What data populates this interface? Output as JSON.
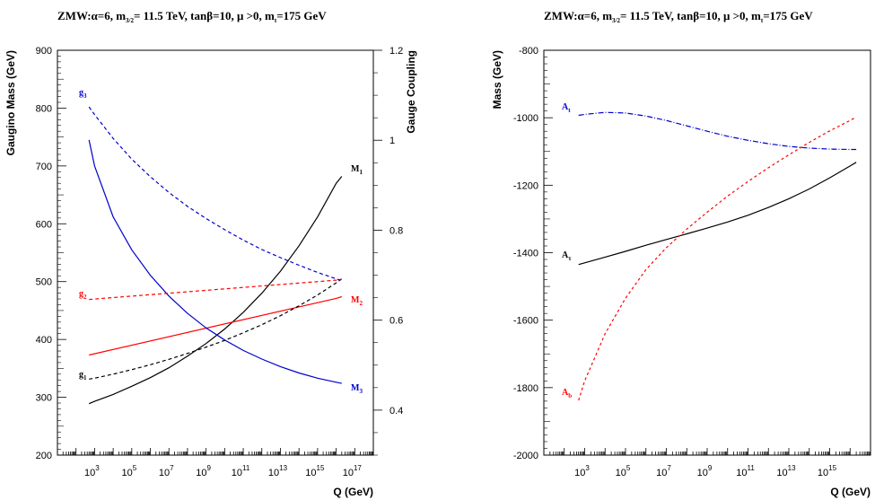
{
  "chart_data": [
    {
      "type": "line",
      "title_main": "ZMW:α=6, m",
      "title_sub": "3/2",
      "title_rest": "= 11.5 TeV, tanβ=10, μ >0, m",
      "title_sub2": "t",
      "title_end": "=175 GeV",
      "xlabel": "Q (GeV)",
      "ylabel": "Gaugino Mass (GeV)",
      "ylabel_right": "Gauge Coupling",
      "x_scale": "log",
      "xlim": [
        10,
        1e+18
      ],
      "ylim": [
        200,
        900
      ],
      "ylim_right": [
        0.3,
        1.2
      ],
      "xticks": [
        1000.0,
        100000.0,
        10000000.0,
        1000000000.0,
        100000000000.0,
        10000000000000.0,
        1000000000000000.0,
        1e+17
      ],
      "xtick_exponents": [
        "3",
        "5",
        "7",
        "9",
        "11",
        "13",
        "15",
        "17"
      ],
      "xtick_base": "10",
      "yticks": [
        "200",
        "300",
        "400",
        "500",
        "600",
        "700",
        "800",
        "900"
      ],
      "yticks_right": [
        "0.4",
        "0.6",
        "0.8",
        "1",
        "1.2"
      ],
      "series": [
        {
          "label": "M",
          "sub": "1",
          "color": "#000000",
          "dash": "none",
          "axis": "left",
          "x": [
            500,
            1000.0,
            10000.0,
            100000.0,
            1000000.0,
            10000000.0,
            100000000.0,
            1000000000.0,
            10000000000.0,
            100000000000.0,
            1000000000000.0,
            10000000000000.0,
            100000000000000.0,
            1000000000000000.0,
            1e+16,
            2e+16
          ],
          "y": [
            289,
            293,
            305,
            319,
            334,
            351,
            371,
            393,
            418,
            447,
            480,
            518,
            562,
            612,
            670,
            682
          ]
        },
        {
          "label": "M",
          "sub": "2",
          "color": "#ff0000",
          "dash": "none",
          "axis": "left",
          "x": [
            500,
            1e+16,
            2e+16
          ],
          "y": [
            373,
            471,
            474
          ]
        },
        {
          "label": "M",
          "sub": "3",
          "color": "#0000cc",
          "dash": "none",
          "axis": "left",
          "x": [
            500,
            1000.0,
            10000.0,
            100000.0,
            1000000.0,
            10000000.0,
            100000000.0,
            1000000000.0,
            10000000000.0,
            100000000000.0,
            1000000000000.0,
            10000000000000.0,
            100000000000000.0,
            1000000000000000.0,
            1e+16,
            2e+16
          ],
          "y": [
            745,
            700,
            612,
            555,
            511,
            475,
            445,
            420,
            399,
            381,
            366,
            353,
            342,
            333,
            326,
            324
          ]
        },
        {
          "label": "g",
          "sub": "1",
          "color": "#000000",
          "dash": "4,3",
          "axis": "right",
          "x": [
            500,
            1000.0,
            10000.0,
            100000.0,
            1000000.0,
            10000000.0,
            100000000.0,
            1000000000.0,
            10000000000.0,
            100000000000.0,
            1000000000000.0,
            10000000000000.0,
            100000000000000.0,
            1000000000000000.0,
            1e+16,
            2e+16
          ],
          "y": [
            0.469,
            0.471,
            0.48,
            0.49,
            0.501,
            0.513,
            0.526,
            0.54,
            0.555,
            0.572,
            0.59,
            0.61,
            0.632,
            0.656,
            0.683,
            0.692
          ]
        },
        {
          "label": "g",
          "sub": "2",
          "color": "#ff0000",
          "dash": "4,3",
          "axis": "right",
          "x": [
            500,
            1e+16,
            2e+16
          ],
          "y": [
            0.646,
            0.689,
            0.691
          ]
        },
        {
          "label": "g",
          "sub": "3",
          "color": "#0000cc",
          "dash": "4,3",
          "axis": "right",
          "x": [
            500,
            1000.0,
            10000.0,
            100000.0,
            1000000.0,
            10000000.0,
            100000000.0,
            1000000000.0,
            10000000000.0,
            100000000000.0,
            1000000000000.0,
            10000000000000.0,
            100000000000000.0,
            1000000000000000.0,
            1e+16,
            2e+16
          ],
          "y": [
            1.074,
            1.057,
            1.004,
            0.958,
            0.919,
            0.884,
            0.853,
            0.826,
            0.801,
            0.778,
            0.757,
            0.739,
            0.722,
            0.706,
            0.692,
            0.688
          ]
        }
      ]
    },
    {
      "type": "line",
      "title_main": "ZMW:α=6, m",
      "title_sub": "3/2",
      "title_rest": "= 11.5 TeV, tanβ=10, μ >0, m",
      "title_sub2": "t",
      "title_end": "=175 GeV",
      "xlabel": "Q (GeV)",
      "ylabel": "Mass (GeV)",
      "x_scale": "log",
      "xlim": [
        10,
        1e+17
      ],
      "ylim": [
        -2000,
        -800
      ],
      "xticks": [
        1000.0,
        100000.0,
        10000000.0,
        1000000000.0,
        100000000000.0,
        10000000000000.0,
        1000000000000000.0
      ],
      "xtick_exponents": [
        "3",
        "5",
        "7",
        "9",
        "11",
        "13",
        "15"
      ],
      "xtick_base": "10",
      "yticks": [
        "-2000",
        "-1800",
        "-1600",
        "-1400",
        "-1200",
        "-1000",
        "-800"
      ],
      "series": [
        {
          "label": "A",
          "sub": "t",
          "color": "#0000cc",
          "dash": "6,2,1,2",
          "x": [
            500,
            1000.0,
            10000.0,
            100000.0,
            1000000.0,
            10000000.0,
            100000000.0,
            1000000000.0,
            10000000000.0,
            100000000000.0,
            1000000000000.0,
            10000000000000.0,
            100000000000000.0,
            1000000000000000.0,
            1e+16,
            2e+16
          ],
          "y": [
            -993,
            -990,
            -984,
            -986,
            -995,
            -1008,
            -1024,
            -1040,
            -1055,
            -1067,
            -1077,
            -1085,
            -1090,
            -1093,
            -1094,
            -1094
          ]
        },
        {
          "label": "A",
          "sub": "τ",
          "color": "#000000",
          "dash": "none",
          "x": [
            500,
            1000.0,
            10000.0,
            100000.0,
            1000000.0,
            10000000.0,
            100000000.0,
            1000000000.0,
            10000000000.0,
            100000000000.0,
            1000000000000.0,
            10000000000000.0,
            100000000000000.0,
            1000000000000000.0,
            1e+16,
            2e+16
          ],
          "y": [
            -1435,
            -1430,
            -1413,
            -1396,
            -1378,
            -1361,
            -1344,
            -1327,
            -1309,
            -1289,
            -1266,
            -1240,
            -1211,
            -1178,
            -1143,
            -1132
          ]
        },
        {
          "label": "A",
          "sub": "b",
          "color": "#ff0000",
          "dash": "3,3",
          "x": [
            500,
            1000.0,
            10000.0,
            100000.0,
            1000000.0,
            10000000.0,
            100000000.0,
            1000000000.0,
            10000000000.0,
            100000000000.0,
            1000000000000.0,
            10000000000000.0,
            100000000000000.0,
            1000000000000000.0,
            1e+16,
            2e+16
          ],
          "y": [
            -1838,
            -1780,
            -1640,
            -1535,
            -1450,
            -1385,
            -1330,
            -1280,
            -1232,
            -1189,
            -1148,
            -1110,
            -1073,
            -1039,
            -1008,
            -998
          ]
        }
      ]
    }
  ]
}
